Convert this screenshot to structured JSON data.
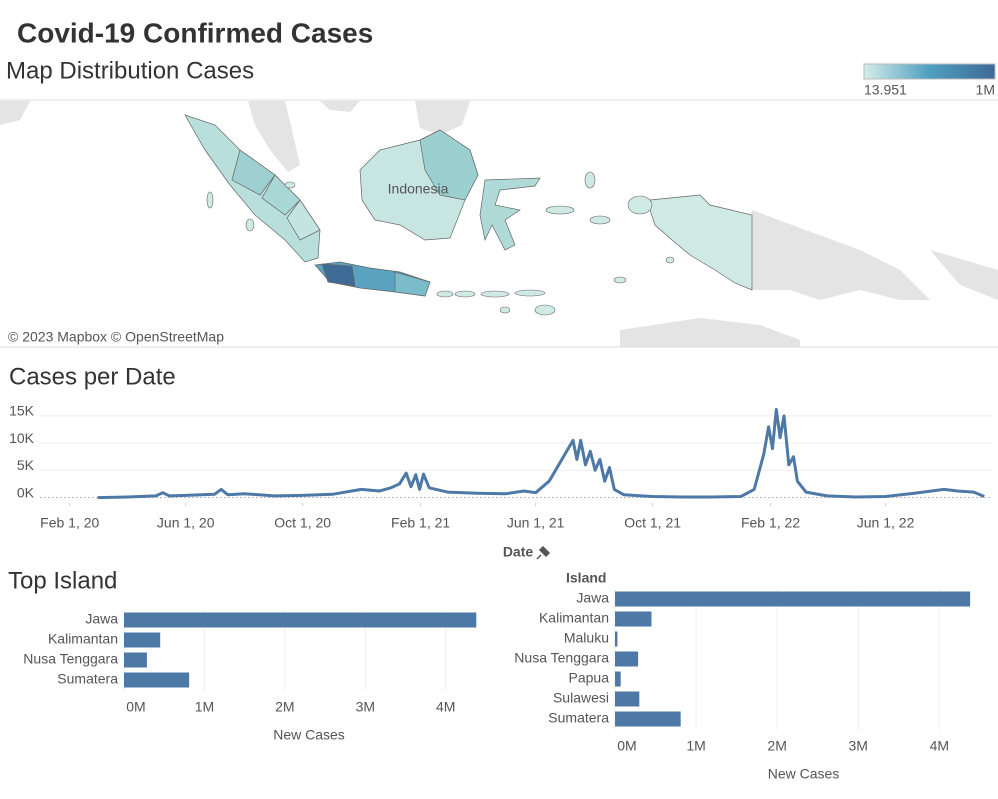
{
  "title": "Covid-19 Confirmed Cases",
  "map": {
    "title": "Map Distribution Cases",
    "attribution": "© 2023 Mapbox © OpenStreetMap",
    "country_label": "Indonesia",
    "legend": {
      "min": {
        "value": 13951,
        "label": "13.951"
      },
      "max": {
        "value": 1000000,
        "label": "1M"
      },
      "colors": [
        "#d4ece8",
        "#4f9fc0",
        "#3e6a96"
      ]
    }
  },
  "chart_data": [
    {
      "type": "line",
      "title": "Cases per Date",
      "x_label": "Date",
      "color": "#4e79a7",
      "grid": true,
      "x": [
        "2020-03-01",
        "2020-04-01",
        "2020-05-01",
        "2020-05-08",
        "2020-05-15",
        "2020-06-01",
        "2020-07-01",
        "2020-07-08",
        "2020-07-15",
        "2020-08-01",
        "2020-09-01",
        "2020-10-01",
        "2020-11-01",
        "2020-12-01",
        "2020-12-20",
        "2021-01-01",
        "2021-01-10",
        "2021-01-17",
        "2021-01-22",
        "2021-01-27",
        "2021-01-31",
        "2021-02-04",
        "2021-02-10",
        "2021-03-01",
        "2021-04-01",
        "2021-05-01",
        "2021-05-20",
        "2021-06-01",
        "2021-06-15",
        "2021-06-25",
        "2021-07-05",
        "2021-07-10",
        "2021-07-14",
        "2021-07-18",
        "2021-07-23",
        "2021-07-28",
        "2021-08-02",
        "2021-08-07",
        "2021-08-12",
        "2021-08-17",
        "2021-08-22",
        "2021-09-01",
        "2021-10-01",
        "2021-11-01",
        "2021-12-01",
        "2022-01-01",
        "2022-01-15",
        "2022-01-25",
        "2022-01-30",
        "2022-02-03",
        "2022-02-07",
        "2022-02-11",
        "2022-02-15",
        "2022-02-20",
        "2022-02-25",
        "2022-03-01",
        "2022-03-10",
        "2022-04-01",
        "2022-05-01",
        "2022-06-01",
        "2022-07-01",
        "2022-08-01",
        "2022-08-15",
        "2022-09-01",
        "2022-09-12"
      ],
      "values": [
        0,
        100,
        300,
        900,
        300,
        400,
        600,
        1500,
        500,
        700,
        300,
        400,
        600,
        1500,
        1200,
        1800,
        2500,
        4500,
        2000,
        4200,
        1500,
        4300,
        1800,
        1000,
        800,
        700,
        1200,
        900,
        3000,
        6000,
        9000,
        10500,
        7000,
        10500,
        6000,
        8500,
        5000,
        7000,
        3000,
        5500,
        1500,
        500,
        200,
        100,
        100,
        200,
        1500,
        8000,
        13000,
        9000,
        16200,
        11000,
        15000,
        6000,
        7500,
        3000,
        1000,
        300,
        100,
        200,
        800,
        1500,
        1200,
        1000,
        200
      ],
      "xlim": [
        "2020-01-01",
        "2022-09-20"
      ],
      "xticks": [
        {
          "value": "2020-02-01",
          "label": "Feb 1, 20"
        },
        {
          "value": "2020-06-01",
          "label": "Jun 1, 20"
        },
        {
          "value": "2020-10-01",
          "label": "Oct 1, 20"
        },
        {
          "value": "2021-02-01",
          "label": "Feb 1, 21"
        },
        {
          "value": "2021-06-01",
          "label": "Jun 1, 21"
        },
        {
          "value": "2021-10-01",
          "label": "Oct 1, 21"
        },
        {
          "value": "2022-02-01",
          "label": "Feb 1, 22"
        },
        {
          "value": "2022-06-01",
          "label": "Jun 1, 22"
        }
      ],
      "ylim": [
        -1000,
        17000
      ],
      "yticks": [
        {
          "value": 0,
          "label": "0K"
        },
        {
          "value": 5000,
          "label": "5K"
        },
        {
          "value": 10000,
          "label": "10K"
        },
        {
          "value": 15000,
          "label": "15K"
        }
      ]
    },
    {
      "type": "barh",
      "title": "Top Island",
      "x_label": "New Cases",
      "color": "#4e79a7",
      "grid": true,
      "categories": [
        "Jawa",
        "Kalimantan",
        "Nusa Tenggara",
        "Sumatera"
      ],
      "values": [
        4380000,
        450000,
        285000,
        810000
      ],
      "xlim": [
        0,
        4600000
      ],
      "xticks": [
        {
          "value": 0,
          "label": "0M"
        },
        {
          "value": 1000000,
          "label": "1M"
        },
        {
          "value": 2000000,
          "label": "2M"
        },
        {
          "value": 3000000,
          "label": "3M"
        },
        {
          "value": 4000000,
          "label": "4M"
        }
      ]
    },
    {
      "type": "barh",
      "y_label": "Island",
      "x_label": "New Cases",
      "color": "#4e79a7",
      "grid": true,
      "categories": [
        "Jawa",
        "Kalimantan",
        "Maluku",
        "Nusa Tenggara",
        "Papua",
        "Sulawesi",
        "Sumatera"
      ],
      "values": [
        4380000,
        450000,
        30000,
        285000,
        70000,
        300000,
        810000
      ],
      "xlim": [
        0,
        4650000
      ],
      "xticks": [
        {
          "value": 0,
          "label": "0M"
        },
        {
          "value": 1000000,
          "label": "1M"
        },
        {
          "value": 2000000,
          "label": "2M"
        },
        {
          "value": 3000000,
          "label": "3M"
        },
        {
          "value": 4000000,
          "label": "4M"
        }
      ]
    }
  ]
}
